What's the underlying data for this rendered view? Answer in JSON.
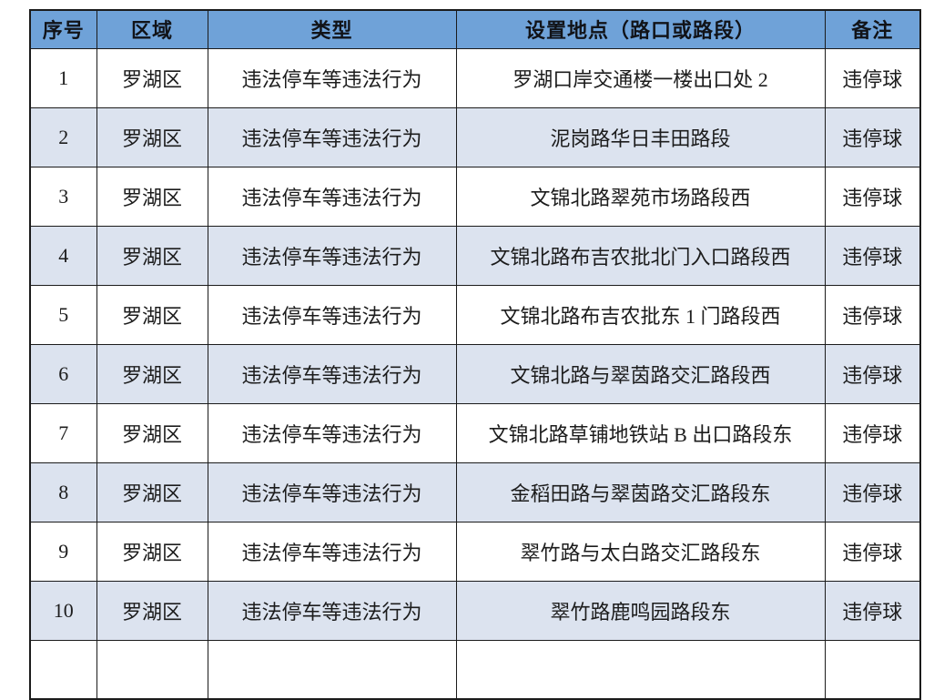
{
  "colors": {
    "header_bg": "#6fa2d8",
    "row_alt_bg": "#dce3ef",
    "border": "#1b1b1b"
  },
  "table": {
    "columns": [
      {
        "key": "seq",
        "label": "序号"
      },
      {
        "key": "district",
        "label": "区域"
      },
      {
        "key": "type",
        "label": "类型"
      },
      {
        "key": "location",
        "label": "设置地点（路口或路段）"
      },
      {
        "key": "remark",
        "label": "备注"
      }
    ],
    "rows": [
      {
        "seq": "1",
        "district": "罗湖区",
        "type": "违法停车等违法行为",
        "location": "罗湖口岸交通楼一楼出口处 2",
        "remark": "违停球"
      },
      {
        "seq": "2",
        "district": "罗湖区",
        "type": "违法停车等违法行为",
        "location": "泥岗路华日丰田路段",
        "remark": "违停球"
      },
      {
        "seq": "3",
        "district": "罗湖区",
        "type": "违法停车等违法行为",
        "location": "文锦北路翠苑市场路段西",
        "remark": "违停球"
      },
      {
        "seq": "4",
        "district": "罗湖区",
        "type": "违法停车等违法行为",
        "location": "文锦北路布吉农批北门入口路段西",
        "remark": "违停球"
      },
      {
        "seq": "5",
        "district": "罗湖区",
        "type": "违法停车等违法行为",
        "location": "文锦北路布吉农批东 1 门路段西",
        "remark": "违停球"
      },
      {
        "seq": "6",
        "district": "罗湖区",
        "type": "违法停车等违法行为",
        "location": "文锦北路与翠茵路交汇路段西",
        "remark": "违停球"
      },
      {
        "seq": "7",
        "district": "罗湖区",
        "type": "违法停车等违法行为",
        "location": "文锦北路草铺地铁站 B 出口路段东",
        "remark": "违停球"
      },
      {
        "seq": "8",
        "district": "罗湖区",
        "type": "违法停车等违法行为",
        "location": "金稻田路与翠茵路交汇路段东",
        "remark": "违停球"
      },
      {
        "seq": "9",
        "district": "罗湖区",
        "type": "违法停车等违法行为",
        "location": "翠竹路与太白路交汇路段东",
        "remark": "违停球"
      },
      {
        "seq": "10",
        "district": "罗湖区",
        "type": "违法停车等违法行为",
        "location": "翠竹路鹿鸣园路段东",
        "remark": "违停球"
      }
    ]
  }
}
